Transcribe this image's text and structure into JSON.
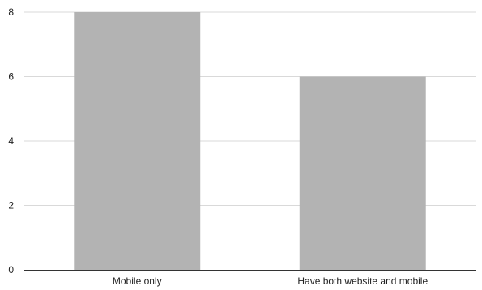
{
  "chart_data": {
    "type": "bar",
    "title": "",
    "xlabel": "",
    "ylabel": "",
    "categories": [
      "Mobile only",
      "Have both website and mobile"
    ],
    "values": [
      8,
      6
    ],
    "ylim": [
      0,
      8
    ],
    "yticks": [
      "0",
      "2",
      "4",
      "6",
      "8"
    ],
    "grid": true,
    "legend": "none",
    "bar_color": "#b3b3b3"
  }
}
